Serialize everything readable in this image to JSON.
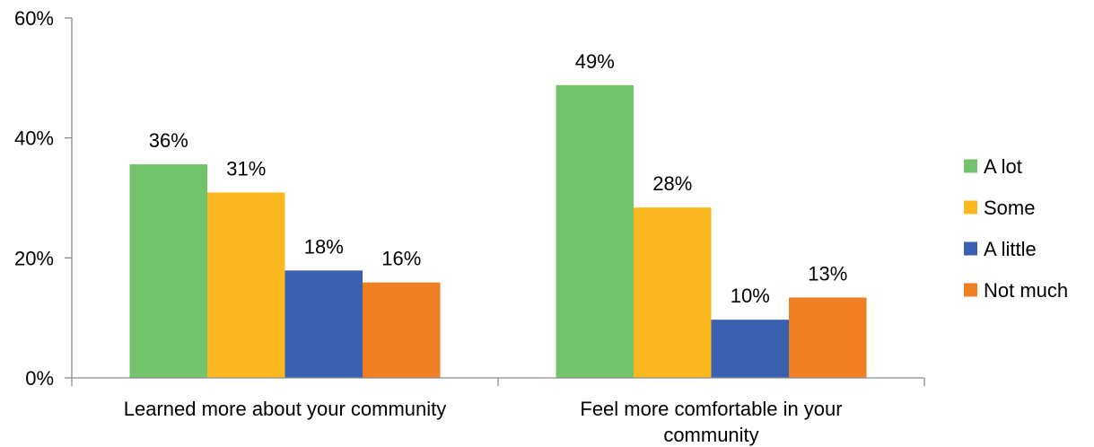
{
  "chart_data": {
    "type": "bar",
    "title": "",
    "xlabel": "",
    "ylabel": "",
    "ylim": [
      0,
      60
    ],
    "y_ticks": [
      0,
      20,
      40,
      60
    ],
    "y_tick_labels": [
      "0%",
      "20%",
      "40%",
      "60%"
    ],
    "grid": false,
    "legend_position": "right",
    "categories": [
      [
        "Learned more about your community"
      ],
      [
        "Feel more comfortable in your",
        "community"
      ]
    ],
    "series": [
      {
        "name": "A lot",
        "color": "#72c36b",
        "values": [
          35.6,
          48.8
        ],
        "labels": [
          "36%",
          "49%"
        ]
      },
      {
        "name": "Some",
        "color": "#fbb81e",
        "values": [
          30.9,
          28.4
        ],
        "labels": [
          "31%",
          "28%"
        ]
      },
      {
        "name": "A little",
        "color": "#3a60b0",
        "values": [
          17.9,
          9.7
        ],
        "labels": [
          "18%",
          "10%"
        ]
      },
      {
        "name": "Not much",
        "color": "#f07e22",
        "values": [
          15.9,
          13.4
        ],
        "labels": [
          "16%",
          "13%"
        ]
      }
    ]
  }
}
